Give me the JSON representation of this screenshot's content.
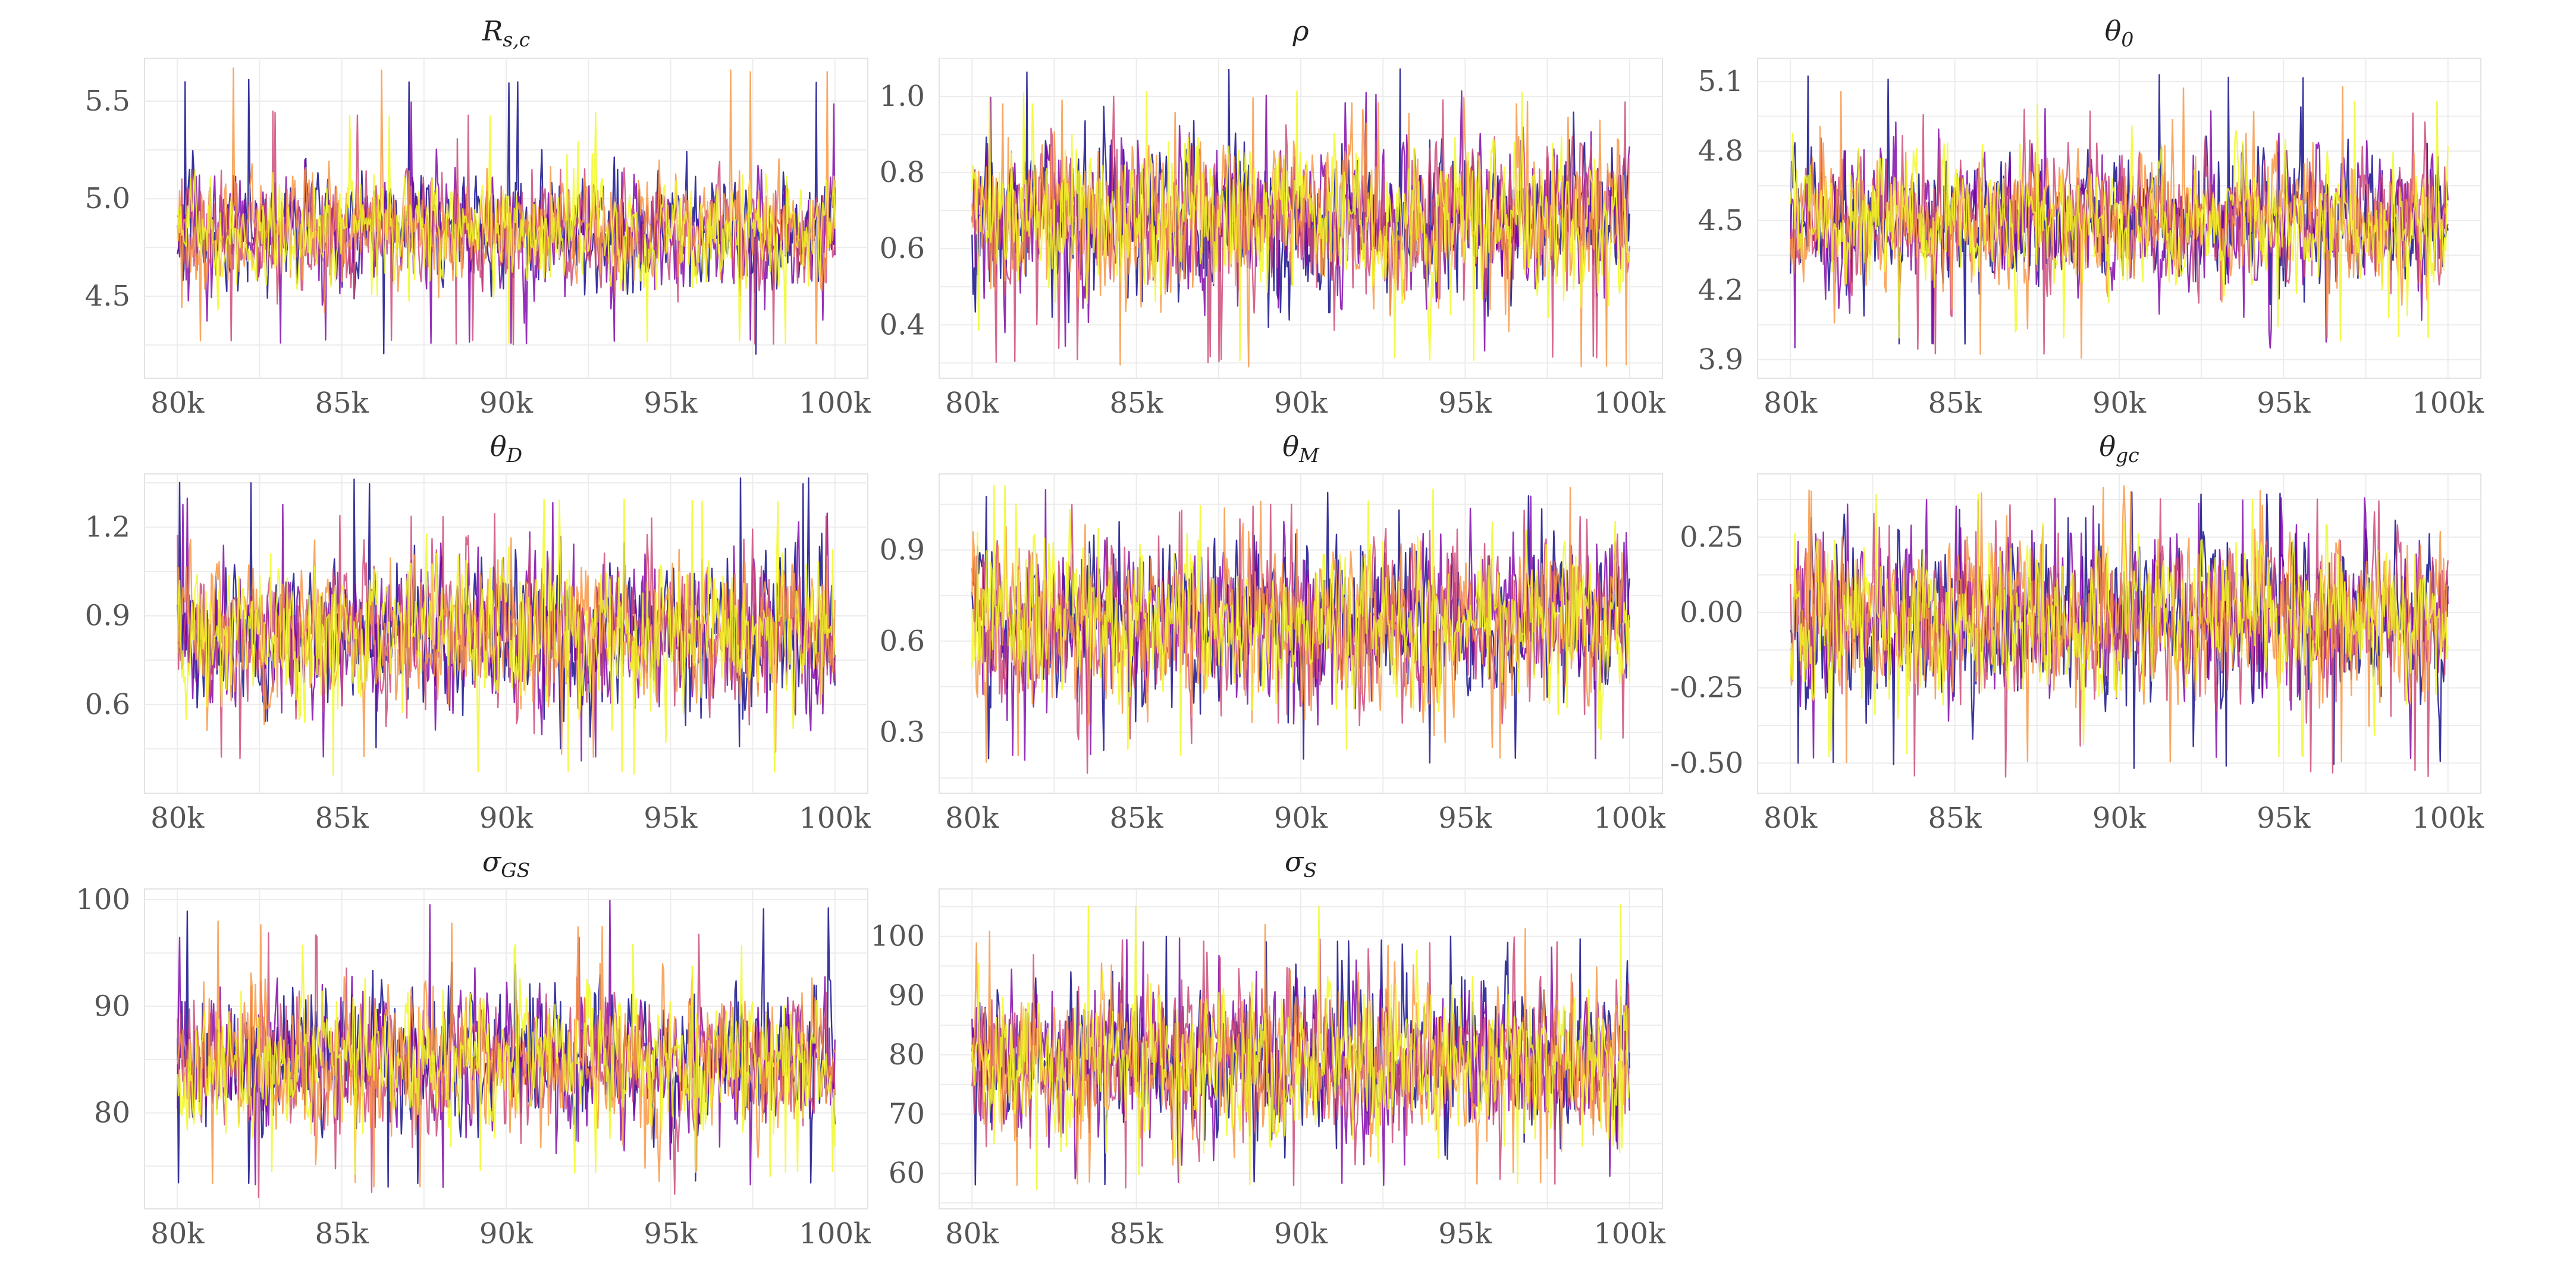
{
  "chart_data": [
    {
      "type": "line",
      "title": "R_{s,c}",
      "title_main": "R",
      "title_sub": "s,c",
      "xlabel": "",
      "ylabel": "",
      "xlim": [
        79000,
        101000
      ],
      "ylim": [
        4.08,
        5.72
      ],
      "x_ticks": [
        80000,
        85000,
        90000,
        95000,
        100000
      ],
      "x_tick_labels": [
        "80k",
        "85k",
        "90k",
        "95k",
        "100k"
      ],
      "y_ticks": [
        4.5,
        5.0,
        5.5
      ],
      "y_tick_labels": [
        "4.5",
        "5.0",
        "5.5"
      ],
      "grid": true,
      "series": [
        {
          "color": "#0d0887",
          "mean": 4.83,
          "spread": 0.14,
          "min": 4.2,
          "max": 5.62
        },
        {
          "color": "#7e03a8",
          "mean": 4.83,
          "spread": 0.14,
          "min": 4.25,
          "max": 5.5
        },
        {
          "color": "#cc4778",
          "mean": 4.83,
          "spread": 0.14,
          "min": 4.25,
          "max": 5.45
        },
        {
          "color": "#f89540",
          "mean": 4.83,
          "spread": 0.14,
          "min": 4.25,
          "max": 5.67
        },
        {
          "color": "#f0f921",
          "mean": 4.83,
          "spread": 0.14,
          "min": 4.25,
          "max": 5.45
        }
      ]
    },
    {
      "type": "line",
      "title": "ρ",
      "title_main": "ρ",
      "title_sub": "",
      "xlabel": "",
      "ylabel": "",
      "xlim": [
        79000,
        101000
      ],
      "ylim": [
        0.26,
        1.1
      ],
      "x_ticks": [
        80000,
        85000,
        90000,
        95000,
        100000
      ],
      "x_tick_labels": [
        "80k",
        "85k",
        "90k",
        "95k",
        "100k"
      ],
      "y_ticks": [
        0.4,
        0.6,
        0.8,
        1.0
      ],
      "y_tick_labels": [
        "0.4",
        "0.6",
        "0.8",
        "1.0"
      ],
      "grid": true,
      "series": [
        {
          "color": "#0d0887",
          "mean": 0.68,
          "spread": 0.1,
          "min": 0.3,
          "max": 1.08
        },
        {
          "color": "#7e03a8",
          "mean": 0.68,
          "spread": 0.1,
          "min": 0.33,
          "max": 1.02
        },
        {
          "color": "#cc4778",
          "mean": 0.68,
          "spread": 0.1,
          "min": 0.3,
          "max": 1.0
        },
        {
          "color": "#f89540",
          "mean": 0.68,
          "spread": 0.1,
          "min": 0.28,
          "max": 1.0
        },
        {
          "color": "#f0f921",
          "mean": 0.68,
          "spread": 0.1,
          "min": 0.3,
          "max": 1.02
        }
      ]
    },
    {
      "type": "line",
      "title": "θ_0",
      "title_main": "θ",
      "title_sub": "0",
      "xlabel": "",
      "ylabel": "",
      "xlim": [
        79000,
        101000
      ],
      "ylim": [
        3.82,
        5.2
      ],
      "x_ticks": [
        80000,
        85000,
        90000,
        95000,
        100000
      ],
      "x_tick_labels": [
        "80k",
        "85k",
        "90k",
        "95k",
        "100k"
      ],
      "y_ticks": [
        3.9,
        4.2,
        4.5,
        4.8,
        5.1
      ],
      "y_tick_labels": [
        "3.9",
        "4.2",
        "4.5",
        "4.8",
        "5.1"
      ],
      "grid": true,
      "series": [
        {
          "color": "#0d0887",
          "mean": 4.5,
          "spread": 0.14,
          "min": 3.95,
          "max": 5.13
        },
        {
          "color": "#7e03a8",
          "mean": 4.5,
          "spread": 0.14,
          "min": 3.95,
          "max": 5.0
        },
        {
          "color": "#cc4778",
          "mean": 4.5,
          "spread": 0.14,
          "min": 3.92,
          "max": 4.98
        },
        {
          "color": "#f89540",
          "mean": 4.5,
          "spread": 0.14,
          "min": 3.9,
          "max": 5.08
        },
        {
          "color": "#f0f921",
          "mean": 4.5,
          "spread": 0.14,
          "min": 3.98,
          "max": 5.02
        }
      ]
    },
    {
      "type": "line",
      "title": "θ_D",
      "title_main": "θ",
      "title_sub": "D",
      "xlabel": "",
      "ylabel": "",
      "xlim": [
        79000,
        101000
      ],
      "ylim": [
        0.3,
        1.38
      ],
      "x_ticks": [
        80000,
        85000,
        90000,
        95000,
        100000
      ],
      "x_tick_labels": [
        "80k",
        "85k",
        "90k",
        "95k",
        "100k"
      ],
      "y_ticks": [
        0.6,
        0.9,
        1.2
      ],
      "y_tick_labels": [
        "0.6",
        "0.9",
        "1.2"
      ],
      "grid": true,
      "series": [
        {
          "color": "#0d0887",
          "mean": 0.84,
          "spread": 0.12,
          "min": 0.45,
          "max": 1.37
        },
        {
          "color": "#7e03a8",
          "mean": 0.84,
          "spread": 0.12,
          "min": 0.4,
          "max": 1.3
        },
        {
          "color": "#cc4778",
          "mean": 0.84,
          "spread": 0.12,
          "min": 0.4,
          "max": 1.25
        },
        {
          "color": "#f89540",
          "mean": 0.84,
          "spread": 0.12,
          "min": 0.42,
          "max": 1.25
        },
        {
          "color": "#f0f921",
          "mean": 0.84,
          "spread": 0.12,
          "min": 0.36,
          "max": 1.3
        }
      ]
    },
    {
      "type": "line",
      "title": "θ_M",
      "title_main": "θ",
      "title_sub": "M",
      "xlabel": "",
      "ylabel": "",
      "xlim": [
        79000,
        101000
      ],
      "ylim": [
        0.1,
        1.15
      ],
      "x_ticks": [
        80000,
        85000,
        90000,
        95000,
        100000
      ],
      "x_tick_labels": [
        "80k",
        "85k",
        "90k",
        "95k",
        "100k"
      ],
      "y_ticks": [
        0.3,
        0.6,
        0.9
      ],
      "y_tick_labels": [
        "0.3",
        "0.6",
        "0.9"
      ],
      "grid": true,
      "series": [
        {
          "color": "#0d0887",
          "mean": 0.66,
          "spread": 0.13,
          "min": 0.2,
          "max": 1.1
        },
        {
          "color": "#7e03a8",
          "mean": 0.66,
          "spread": 0.13,
          "min": 0.2,
          "max": 1.1
        },
        {
          "color": "#cc4778",
          "mean": 0.66,
          "spread": 0.13,
          "min": 0.15,
          "max": 1.05
        },
        {
          "color": "#f89540",
          "mean": 0.66,
          "spread": 0.13,
          "min": 0.2,
          "max": 1.12
        },
        {
          "color": "#f0f921",
          "mean": 0.66,
          "spread": 0.13,
          "min": 0.22,
          "max": 1.12
        }
      ]
    },
    {
      "type": "line",
      "title": "θ_{gc}",
      "title_main": "θ",
      "title_sub": "gc",
      "xlabel": "",
      "ylabel": "",
      "xlim": [
        79000,
        101000
      ],
      "ylim": [
        -0.6,
        0.46
      ],
      "x_ticks": [
        80000,
        85000,
        90000,
        95000,
        100000
      ],
      "x_tick_labels": [
        "80k",
        "85k",
        "90k",
        "95k",
        "100k"
      ],
      "y_ticks": [
        -0.5,
        -0.25,
        0.0,
        0.25
      ],
      "y_tick_labels": [
        "-0.50",
        "-0.25",
        "0.00",
        "0.25"
      ],
      "grid": true,
      "series": [
        {
          "color": "#0d0887",
          "mean": -0.02,
          "spread": 0.13,
          "min": -0.52,
          "max": 0.4
        },
        {
          "color": "#7e03a8",
          "mean": -0.02,
          "spread": 0.13,
          "min": -0.5,
          "max": 0.38
        },
        {
          "color": "#cc4778",
          "mean": -0.02,
          "spread": 0.13,
          "min": -0.55,
          "max": 0.38
        },
        {
          "color": "#f89540",
          "mean": -0.02,
          "spread": 0.13,
          "min": -0.5,
          "max": 0.42
        },
        {
          "color": "#f0f921",
          "mean": -0.02,
          "spread": 0.13,
          "min": -0.48,
          "max": 0.4
        }
      ]
    },
    {
      "type": "line",
      "title": "σ_{GS}",
      "title_main": "σ",
      "title_sub": "GS",
      "xlabel": "",
      "ylabel": "",
      "xlim": [
        79000,
        101000
      ],
      "ylim": [
        71,
        101
      ],
      "x_ticks": [
        80000,
        85000,
        90000,
        95000,
        100000
      ],
      "x_tick_labels": [
        "80k",
        "85k",
        "90k",
        "95k",
        "100k"
      ],
      "y_ticks": [
        80,
        90,
        100
      ],
      "y_tick_labels": [
        "80",
        "90",
        "100"
      ],
      "grid": true,
      "series": [
        {
          "color": "#0d0887",
          "mean": 85,
          "spread": 3.2,
          "min": 73,
          "max": 99.5
        },
        {
          "color": "#7e03a8",
          "mean": 85,
          "spread": 3.2,
          "min": 73,
          "max": 100
        },
        {
          "color": "#cc4778",
          "mean": 85,
          "spread": 3.2,
          "min": 72,
          "max": 97
        },
        {
          "color": "#f89540",
          "mean": 85,
          "spread": 3.2,
          "min": 73,
          "max": 98
        },
        {
          "color": "#f0f921",
          "mean": 85,
          "spread": 3.2,
          "min": 74,
          "max": 96
        }
      ]
    },
    {
      "type": "line",
      "title": "σ_S",
      "title_main": "σ",
      "title_sub": "S",
      "xlabel": "",
      "ylabel": "",
      "xlim": [
        79000,
        101000
      ],
      "ylim": [
        54,
        108
      ],
      "x_ticks": [
        80000,
        85000,
        90000,
        95000,
        100000
      ],
      "x_tick_labels": [
        "80k",
        "85k",
        "90k",
        "95k",
        "100k"
      ],
      "y_ticks": [
        60,
        70,
        80,
        90,
        100
      ],
      "y_tick_labels": [
        "60",
        "70",
        "80",
        "90",
        "100"
      ],
      "grid": true,
      "series": [
        {
          "color": "#0d0887",
          "mean": 79,
          "spread": 6.5,
          "min": 58,
          "max": 100
        },
        {
          "color": "#7e03a8",
          "mean": 79,
          "spread": 6.5,
          "min": 58,
          "max": 100
        },
        {
          "color": "#cc4778",
          "mean": 79,
          "spread": 6.5,
          "min": 57,
          "max": 100
        },
        {
          "color": "#f89540",
          "mean": 79,
          "spread": 6.5,
          "min": 58,
          "max": 102
        },
        {
          "color": "#f0f921",
          "mean": 79,
          "spread": 6.5,
          "min": 57,
          "max": 106
        }
      ]
    }
  ]
}
